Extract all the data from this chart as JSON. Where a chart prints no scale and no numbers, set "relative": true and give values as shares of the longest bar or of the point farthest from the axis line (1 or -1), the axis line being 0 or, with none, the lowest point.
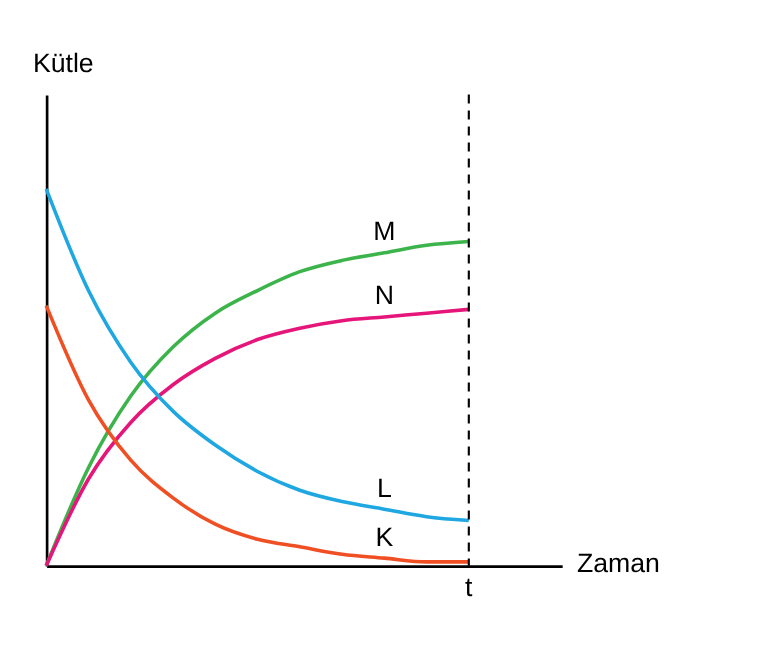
{
  "chart_data": {
    "type": "line",
    "relative": true,
    "xlabel": "Zaman",
    "ylabel": "Kütle",
    "categories": [
      null,
      null,
      null,
      null,
      null,
      null,
      null,
      null,
      null,
      null,
      null
    ],
    "annotations": [
      "t"
    ],
    "series": [
      {
        "name": "M",
        "color": "#3cb44b",
        "values": [
          0,
          0.26,
          0.45,
          0.58,
          0.67,
          0.73,
          0.78,
          0.81,
          0.83,
          0.85,
          0.86
        ]
      },
      {
        "name": "N",
        "color": "#e6157a",
        "values": [
          0,
          0.23,
          0.38,
          0.48,
          0.55,
          0.6,
          0.63,
          0.65,
          0.66,
          0.67,
          0.68
        ]
      },
      {
        "name": "L",
        "color": "#1ea7e1",
        "values": [
          1,
          0.73,
          0.54,
          0.41,
          0.32,
          0.25,
          0.2,
          0.17,
          0.15,
          0.13,
          0.12
        ]
      },
      {
        "name": "K",
        "color": "#f04e23",
        "values": [
          0.69,
          0.44,
          0.28,
          0.18,
          0.11,
          0.07,
          0.05,
          0.03,
          0.02,
          0.01,
          0.01
        ]
      }
    ],
    "grid": false,
    "marker": "none",
    "line_style": "solid"
  }
}
